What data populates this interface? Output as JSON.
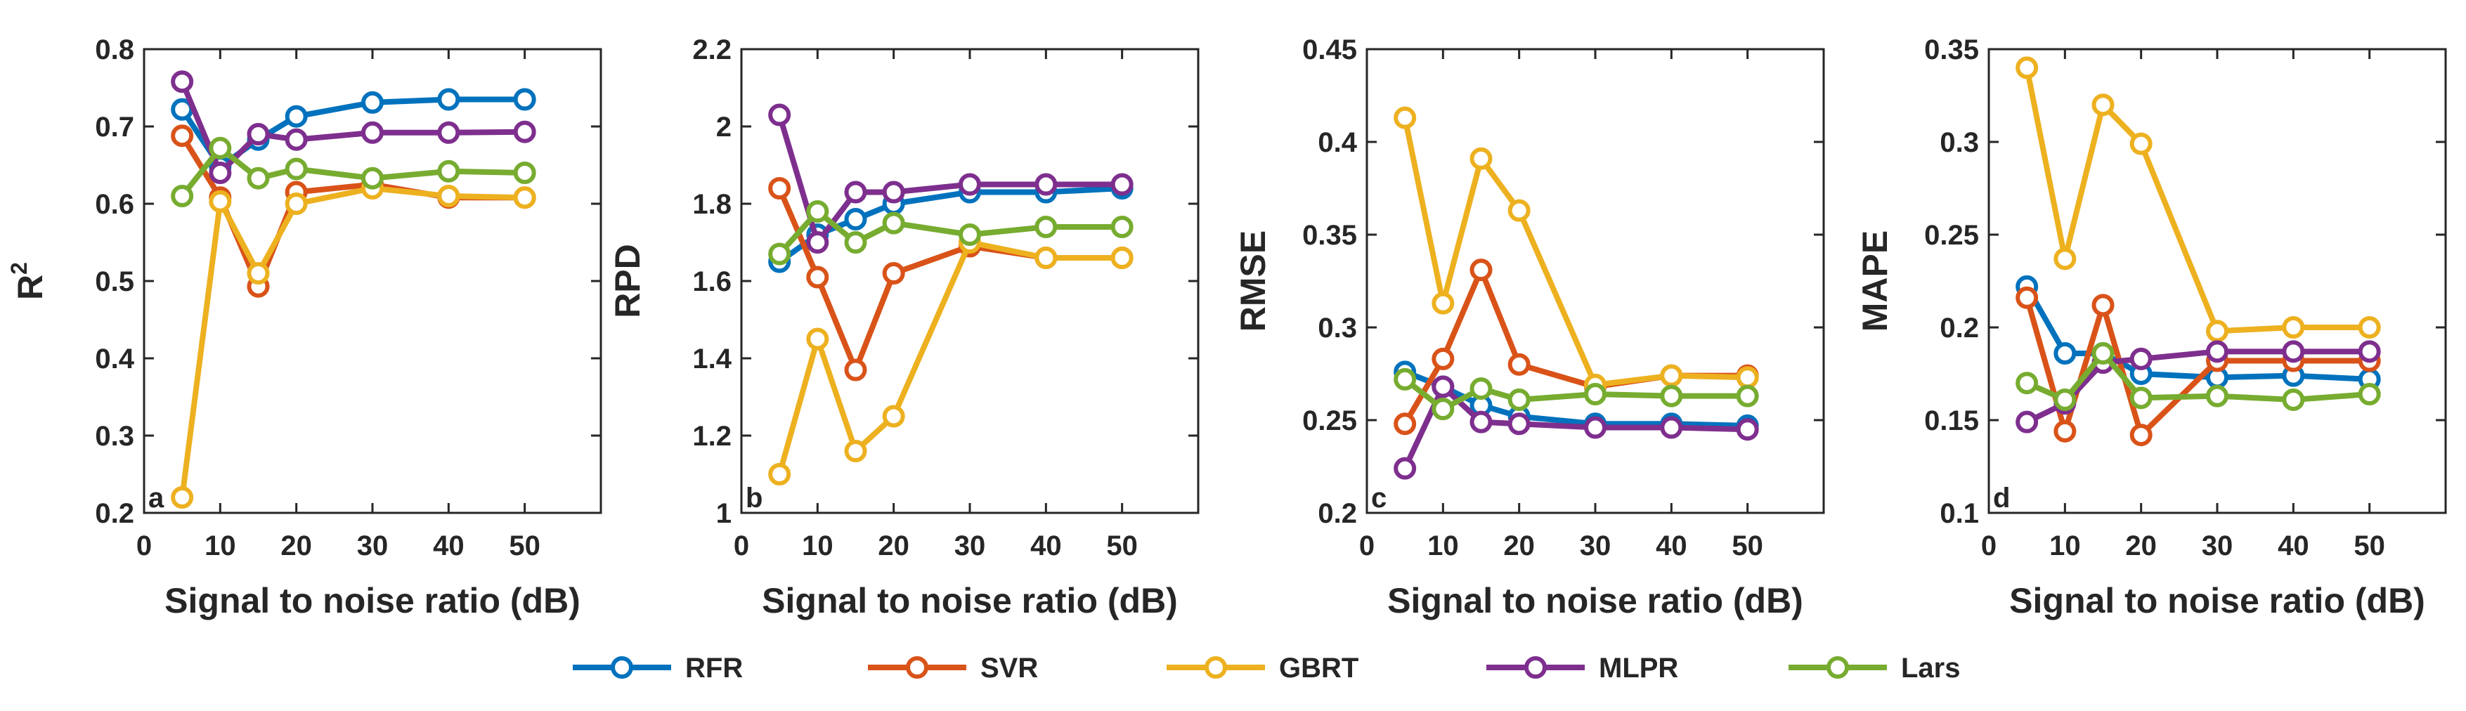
{
  "legend": [
    {
      "name": "RFR",
      "color": "#0072BD"
    },
    {
      "name": "SVR",
      "color": "#D95319"
    },
    {
      "name": "GBRT",
      "color": "#EDB120"
    },
    {
      "name": "MLPR",
      "color": "#7E2F8E"
    },
    {
      "name": "Lars",
      "color": "#77AC30"
    }
  ],
  "chart_data": [
    {
      "type": "line",
      "panel_letter": "a",
      "title": "",
      "xlabel": "Signal to noise ratio (dB)",
      "ylabel": "R",
      "ylabel_superscript": "2",
      "xlim": [
        0,
        60
      ],
      "ylim": [
        0.2,
        0.8
      ],
      "xticks": [
        0,
        10,
        20,
        30,
        40,
        50
      ],
      "xtick_labels": [
        "0",
        "10",
        "20",
        "30",
        "40",
        "50"
      ],
      "yticks": [
        0.2,
        0.3,
        0.4,
        0.5,
        0.6,
        0.7,
        0.8
      ],
      "ytick_labels": [
        "0.2",
        "0.3",
        "0.4",
        "0.5",
        "0.6",
        "0.7",
        "0.8"
      ],
      "x": [
        5,
        10,
        15,
        20,
        30,
        40,
        50
      ],
      "series": [
        {
          "name": "RFR",
          "color": "#0072BD",
          "values": [
            0.722,
            0.648,
            0.683,
            0.713,
            0.731,
            0.735,
            0.735
          ]
        },
        {
          "name": "SVR",
          "color": "#D95319",
          "values": [
            0.688,
            0.608,
            0.493,
            0.615,
            0.625,
            0.608,
            0.608
          ]
        },
        {
          "name": "GBRT",
          "color": "#EDB120",
          "values": [
            0.22,
            0.603,
            0.51,
            0.6,
            0.62,
            0.61,
            0.608
          ]
        },
        {
          "name": "MLPR",
          "color": "#7E2F8E",
          "values": [
            0.758,
            0.64,
            0.69,
            0.683,
            0.692,
            0.692,
            0.693
          ]
        },
        {
          "name": "Lars",
          "color": "#77AC30",
          "values": [
            0.61,
            0.672,
            0.633,
            0.645,
            0.633,
            0.642,
            0.64
          ]
        }
      ]
    },
    {
      "type": "line",
      "panel_letter": "b",
      "title": "",
      "xlabel": "Signal to noise ratio (dB)",
      "ylabel": "RPD",
      "ylabel_superscript": "",
      "xlim": [
        0,
        60
      ],
      "ylim": [
        1,
        2.2
      ],
      "xticks": [
        0,
        10,
        20,
        30,
        40,
        50
      ],
      "xtick_labels": [
        "0",
        "10",
        "20",
        "30",
        "40",
        "50"
      ],
      "yticks": [
        1,
        1.2,
        1.4,
        1.6,
        1.8,
        2,
        2.2
      ],
      "ytick_labels": [
        "1",
        "1.2",
        "1.4",
        "1.6",
        "1.8",
        "2",
        "2.2"
      ],
      "x": [
        5,
        10,
        15,
        20,
        30,
        40,
        50
      ],
      "series": [
        {
          "name": "RFR",
          "color": "#0072BD",
          "values": [
            1.65,
            1.72,
            1.76,
            1.8,
            1.83,
            1.83,
            1.84
          ]
        },
        {
          "name": "SVR",
          "color": "#D95319",
          "values": [
            1.84,
            1.61,
            1.37,
            1.62,
            1.69,
            1.66,
            1.66
          ]
        },
        {
          "name": "GBRT",
          "color": "#EDB120",
          "values": [
            1.1,
            1.45,
            1.16,
            1.25,
            1.7,
            1.66,
            1.66
          ]
        },
        {
          "name": "MLPR",
          "color": "#7E2F8E",
          "values": [
            2.03,
            1.7,
            1.83,
            1.83,
            1.85,
            1.85,
            1.85
          ]
        },
        {
          "name": "Lars",
          "color": "#77AC30",
          "values": [
            1.67,
            1.78,
            1.7,
            1.75,
            1.72,
            1.74,
            1.74
          ]
        }
      ]
    },
    {
      "type": "line",
      "panel_letter": "c",
      "title": "",
      "xlabel": "Signal to noise ratio (dB)",
      "ylabel": "RMSE",
      "ylabel_superscript": "",
      "xlim": [
        0,
        60
      ],
      "ylim": [
        0.2,
        0.45
      ],
      "xticks": [
        0,
        10,
        20,
        30,
        40,
        50
      ],
      "xtick_labels": [
        "0",
        "10",
        "20",
        "30",
        "40",
        "50"
      ],
      "yticks": [
        0.2,
        0.25,
        0.3,
        0.35,
        0.4,
        0.45
      ],
      "ytick_labels": [
        "0.2",
        "0.25",
        "0.3",
        "0.35",
        "0.4",
        "0.45"
      ],
      "x": [
        5,
        10,
        15,
        20,
        30,
        40,
        50
      ],
      "series": [
        {
          "name": "RFR",
          "color": "#0072BD",
          "values": [
            0.276,
            0.268,
            0.258,
            0.252,
            0.248,
            0.248,
            0.247
          ]
        },
        {
          "name": "SVR",
          "color": "#D95319",
          "values": [
            0.248,
            0.283,
            0.331,
            0.28,
            0.268,
            0.274,
            0.274
          ]
        },
        {
          "name": "GBRT",
          "color": "#EDB120",
          "values": [
            0.413,
            0.313,
            0.391,
            0.363,
            0.269,
            0.274,
            0.273
          ]
        },
        {
          "name": "MLPR",
          "color": "#7E2F8E",
          "values": [
            0.224,
            0.268,
            0.249,
            0.248,
            0.246,
            0.246,
            0.245
          ]
        },
        {
          "name": "Lars",
          "color": "#77AC30",
          "values": [
            0.272,
            0.256,
            0.267,
            0.261,
            0.264,
            0.263,
            0.263
          ]
        }
      ]
    },
    {
      "type": "line",
      "panel_letter": "d",
      "title": "",
      "xlabel": "Signal to noise ratio (dB)",
      "ylabel": "MAPE",
      "ylabel_superscript": "",
      "xlim": [
        0,
        60
      ],
      "ylim": [
        0.1,
        0.35
      ],
      "xticks": [
        0,
        10,
        20,
        30,
        40,
        50
      ],
      "xtick_labels": [
        "0",
        "10",
        "20",
        "30",
        "40",
        "50"
      ],
      "yticks": [
        0.1,
        0.15,
        0.2,
        0.25,
        0.3,
        0.35
      ],
      "ytick_labels": [
        "0.1",
        "0.15",
        "0.2",
        "0.25",
        "0.3",
        "0.35"
      ],
      "x": [
        5,
        10,
        15,
        20,
        30,
        40,
        50
      ],
      "series": [
        {
          "name": "RFR",
          "color": "#0072BD",
          "values": [
            0.222,
            0.186,
            0.186,
            0.175,
            0.173,
            0.174,
            0.172
          ]
        },
        {
          "name": "SVR",
          "color": "#D95319",
          "values": [
            0.216,
            0.144,
            0.212,
            0.142,
            0.182,
            0.182,
            0.182
          ]
        },
        {
          "name": "GBRT",
          "color": "#EDB120",
          "values": [
            0.34,
            0.237,
            0.32,
            0.299,
            0.198,
            0.2,
            0.2
          ]
        },
        {
          "name": "MLPR",
          "color": "#7E2F8E",
          "values": [
            0.149,
            0.159,
            0.181,
            0.183,
            0.187,
            0.187,
            0.187
          ]
        },
        {
          "name": "Lars",
          "color": "#77AC30",
          "values": [
            0.17,
            0.161,
            0.186,
            0.162,
            0.163,
            0.161,
            0.164
          ]
        }
      ]
    }
  ]
}
